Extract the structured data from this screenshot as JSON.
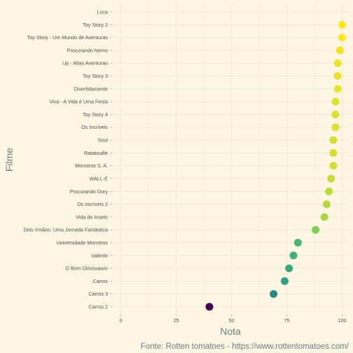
{
  "chart_data": {
    "type": "scatter",
    "xlabel": "Nota",
    "ylabel": "Filme",
    "caption": "Fonte: Rotten tomatoes - https://www.rottentomatoes.com/",
    "xlim": [
      -4,
      103
    ],
    "xticks": [
      0,
      25,
      50,
      75,
      100
    ],
    "grid": true,
    "legend": "none",
    "colorscale": "viridis",
    "colors": {
      "background": "#fdf6e3",
      "grid": "#ece4cf",
      "text": "#4d4d4d",
      "axis_title": "#6b7b87"
    },
    "categories": [
      "Luca",
      "Toy Story 2",
      "Toy Story - Um Mundo de Aventuras",
      "Procurando Nemo",
      "Up - Altas Aventuras",
      "Toy Story 3",
      "Divertidamente",
      "Viva - A Vida é Uma Festa",
      "Toy Story 4",
      "Os Incríveis",
      "Soul",
      "Ratatouille",
      "Monstros S. A.",
      "WALL-E",
      "Procurando Dory",
      "Os Incríveis 2",
      "Vida de Inseto",
      "Dois Irmãos: Uma Jornada Fantástica",
      "Universidade Monstros",
      "Valente",
      "O Bom Dinossauro",
      "Carros",
      "Carros 3",
      "Carros 2"
    ],
    "values": [
      null,
      100,
      100,
      99,
      98,
      98,
      98,
      97,
      97,
      97,
      96,
      96,
      96,
      95,
      94,
      93,
      92,
      88,
      80,
      78,
      76,
      74,
      69,
      40
    ]
  }
}
